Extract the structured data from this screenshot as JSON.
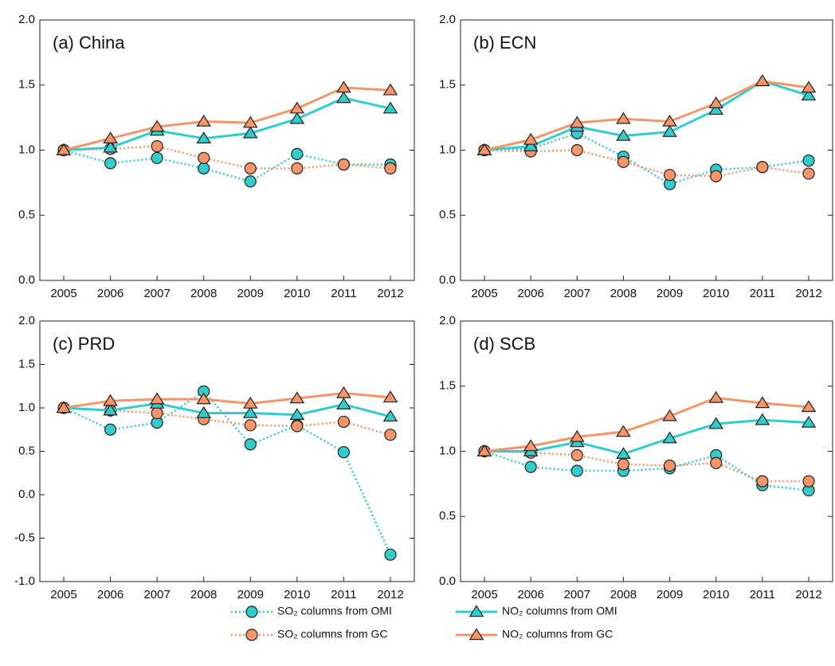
{
  "chart_data": [
    {
      "type": "line",
      "title": "(a) China",
      "categories": [
        "2005",
        "2006",
        "2007",
        "2008",
        "2009",
        "2010",
        "2011",
        "2012"
      ],
      "ylim": [
        0,
        2
      ],
      "yticks": [
        {
          "value": 0,
          "label": "0.0"
        },
        0.5,
        {
          "value": 1,
          "label": "1.0"
        },
        1.5,
        {
          "value": 2,
          "label": "2.0"
        }
      ],
      "series": [
        {
          "name": "SO₂ columns from OMI",
          "color": "#33cccc",
          "marker": "circle",
          "line_style": "dotted",
          "values": [
            1.0,
            0.9,
            0.94,
            0.86,
            0.76,
            0.97,
            0.89,
            0.89
          ]
        },
        {
          "name": "SO₂ columns from GC",
          "color": "#f4956a",
          "marker": "circle",
          "line_style": "dotted",
          "values": [
            1.0,
            1.01,
            1.03,
            0.94,
            0.86,
            0.86,
            0.89,
            0.86
          ]
        },
        {
          "name": "NO₂ columns from OMI",
          "color": "#33cccc",
          "marker": "triangle",
          "line_style": "solid",
          "values": [
            1.0,
            1.02,
            1.15,
            1.09,
            1.13,
            1.24,
            1.4,
            1.32
          ]
        },
        {
          "name": "NO₂ columns from GC",
          "color": "#f4956a",
          "marker": "triangle",
          "line_style": "solid",
          "values": [
            1.0,
            1.09,
            1.18,
            1.22,
            1.21,
            1.32,
            1.48,
            1.46
          ]
        }
      ]
    },
    {
      "type": "line",
      "title": "(b) ECN",
      "categories": [
        "2005",
        "2006",
        "2007",
        "2008",
        "2009",
        "2010",
        "2011",
        "2012"
      ],
      "ylim": [
        0,
        2
      ],
      "yticks": [
        {
          "value": 0,
          "label": "0.0"
        },
        0.5,
        {
          "value": 1,
          "label": "1.0"
        },
        1.5,
        {
          "value": 2,
          "label": "2.0"
        }
      ],
      "series": [
        {
          "name": "SO₂ columns from OMI",
          "color": "#33cccc",
          "marker": "circle",
          "line_style": "dotted",
          "values": [
            1.0,
            1.01,
            1.13,
            0.95,
            0.74,
            0.85,
            0.87,
            0.92
          ]
        },
        {
          "name": "SO₂ columns from GC",
          "color": "#f4956a",
          "marker": "circle",
          "line_style": "dotted",
          "values": [
            1.0,
            0.99,
            1.0,
            0.91,
            0.81,
            0.8,
            0.87,
            0.82
          ]
        },
        {
          "name": "NO₂ columns from OMI",
          "color": "#33cccc",
          "marker": "triangle",
          "line_style": "solid",
          "values": [
            1.0,
            1.03,
            1.18,
            1.11,
            1.14,
            1.31,
            1.53,
            1.42
          ]
        },
        {
          "name": "NO₂ columns from GC",
          "color": "#f4956a",
          "marker": "triangle",
          "line_style": "solid",
          "values": [
            1.0,
            1.08,
            1.21,
            1.24,
            1.22,
            1.36,
            1.53,
            1.48
          ]
        }
      ]
    },
    {
      "type": "line",
      "title": "(c) PRD",
      "categories": [
        "2005",
        "2006",
        "2007",
        "2008",
        "2009",
        "2010",
        "2011",
        "2012"
      ],
      "ylim": [
        -1,
        2
      ],
      "yticks": [
        {
          "value": -1,
          "label": "-1.0"
        },
        -0.5,
        {
          "value": 0,
          "label": "0.0"
        },
        0.5,
        {
          "value": 1,
          "label": "1.0"
        },
        1.5,
        {
          "value": 2,
          "label": "2.0"
        }
      ],
      "series": [
        {
          "name": "SO₂ columns from OMI",
          "color": "#33cccc",
          "marker": "circle",
          "line_style": "dotted",
          "values": [
            1.0,
            0.75,
            0.83,
            1.19,
            0.58,
            0.8,
            0.49,
            -0.69
          ]
        },
        {
          "name": "SO₂ columns from GC",
          "color": "#f4956a",
          "marker": "circle",
          "line_style": "dotted",
          "values": [
            1.0,
            0.97,
            0.94,
            0.87,
            0.8,
            0.79,
            0.84,
            0.69
          ]
        },
        {
          "name": "NO₂ columns from OMI",
          "color": "#33cccc",
          "marker": "triangle",
          "line_style": "solid",
          "values": [
            1.0,
            0.97,
            1.05,
            0.94,
            0.94,
            0.92,
            1.04,
            0.9
          ]
        },
        {
          "name": "NO₂ columns from GC",
          "color": "#f4956a",
          "marker": "triangle",
          "line_style": "solid",
          "values": [
            1.0,
            1.08,
            1.1,
            1.1,
            1.05,
            1.11,
            1.17,
            1.12
          ]
        }
      ]
    },
    {
      "type": "line",
      "title": "(d) SCB",
      "categories": [
        "2005",
        "2006",
        "2007",
        "2008",
        "2009",
        "2010",
        "2011",
        "2012"
      ],
      "ylim": [
        0,
        2
      ],
      "yticks": [
        {
          "value": 0,
          "label": "0.0"
        },
        0.5,
        {
          "value": 1,
          "label": "1.0"
        },
        1.5,
        {
          "value": 2,
          "label": "2.0"
        }
      ],
      "series": [
        {
          "name": "SO₂ columns from OMI",
          "color": "#33cccc",
          "marker": "circle",
          "line_style": "dotted",
          "values": [
            1.0,
            0.88,
            0.85,
            0.85,
            0.87,
            0.97,
            0.74,
            0.7
          ]
        },
        {
          "name": "SO₂ columns from GC",
          "color": "#f4956a",
          "marker": "circle",
          "line_style": "dotted",
          "values": [
            1.0,
            0.99,
            0.97,
            0.9,
            0.89,
            0.91,
            0.77,
            0.77
          ]
        },
        {
          "name": "NO₂ columns from OMI",
          "color": "#33cccc",
          "marker": "triangle",
          "line_style": "solid",
          "values": [
            1.0,
            1.0,
            1.07,
            0.98,
            1.1,
            1.21,
            1.24,
            1.22
          ]
        },
        {
          "name": "NO₂ columns from GC",
          "color": "#f4956a",
          "marker": "triangle",
          "line_style": "solid",
          "values": [
            1.0,
            1.04,
            1.11,
            1.15,
            1.27,
            1.41,
            1.37,
            1.34
          ]
        }
      ]
    }
  ]
}
